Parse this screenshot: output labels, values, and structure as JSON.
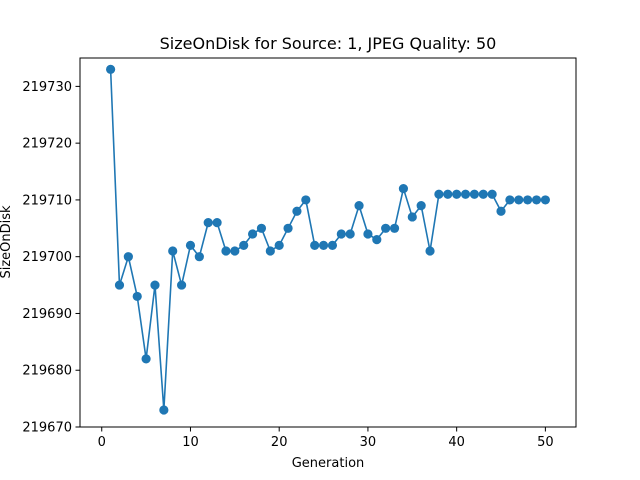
{
  "chart_data": {
    "type": "line",
    "title": "SizeOnDisk for Source: 1, JPEG Quality: 50",
    "xlabel": "Generation",
    "ylabel": "SizeOnDisk",
    "xlim": [
      -2.45,
      53.45
    ],
    "ylim": [
      219670,
      219735
    ],
    "xticks": [
      0,
      10,
      20,
      30,
      40,
      50
    ],
    "yticks": [
      219670,
      219680,
      219690,
      219700,
      219710,
      219720,
      219730
    ],
    "grid": false,
    "legend": "none",
    "series": [
      {
        "color": "#1f77b4",
        "marker": "circle",
        "x": [
          1,
          2,
          3,
          4,
          5,
          6,
          7,
          8,
          9,
          10,
          11,
          12,
          13,
          14,
          15,
          16,
          17,
          18,
          19,
          20,
          21,
          22,
          23,
          24,
          25,
          26,
          27,
          28,
          29,
          30,
          31,
          32,
          33,
          34,
          35,
          36,
          37,
          38,
          39,
          40,
          41,
          42,
          43,
          44,
          45,
          46,
          47,
          48,
          49,
          50
        ],
        "values": [
          219733,
          219695,
          219700,
          219693,
          219682,
          219695,
          219673,
          219701,
          219695,
          219702,
          219700,
          219706,
          219706,
          219701,
          219701,
          219702,
          219704,
          219705,
          219701,
          219702,
          219705,
          219708,
          219710,
          219702,
          219702,
          219702,
          219704,
          219704,
          219709,
          219704,
          219703,
          219705,
          219705,
          219712,
          219707,
          219709,
          219701,
          219711,
          219711,
          219711,
          219711,
          219711,
          219711,
          219711,
          219708,
          219710,
          219710,
          219710,
          219710,
          219710
        ]
      }
    ]
  }
}
